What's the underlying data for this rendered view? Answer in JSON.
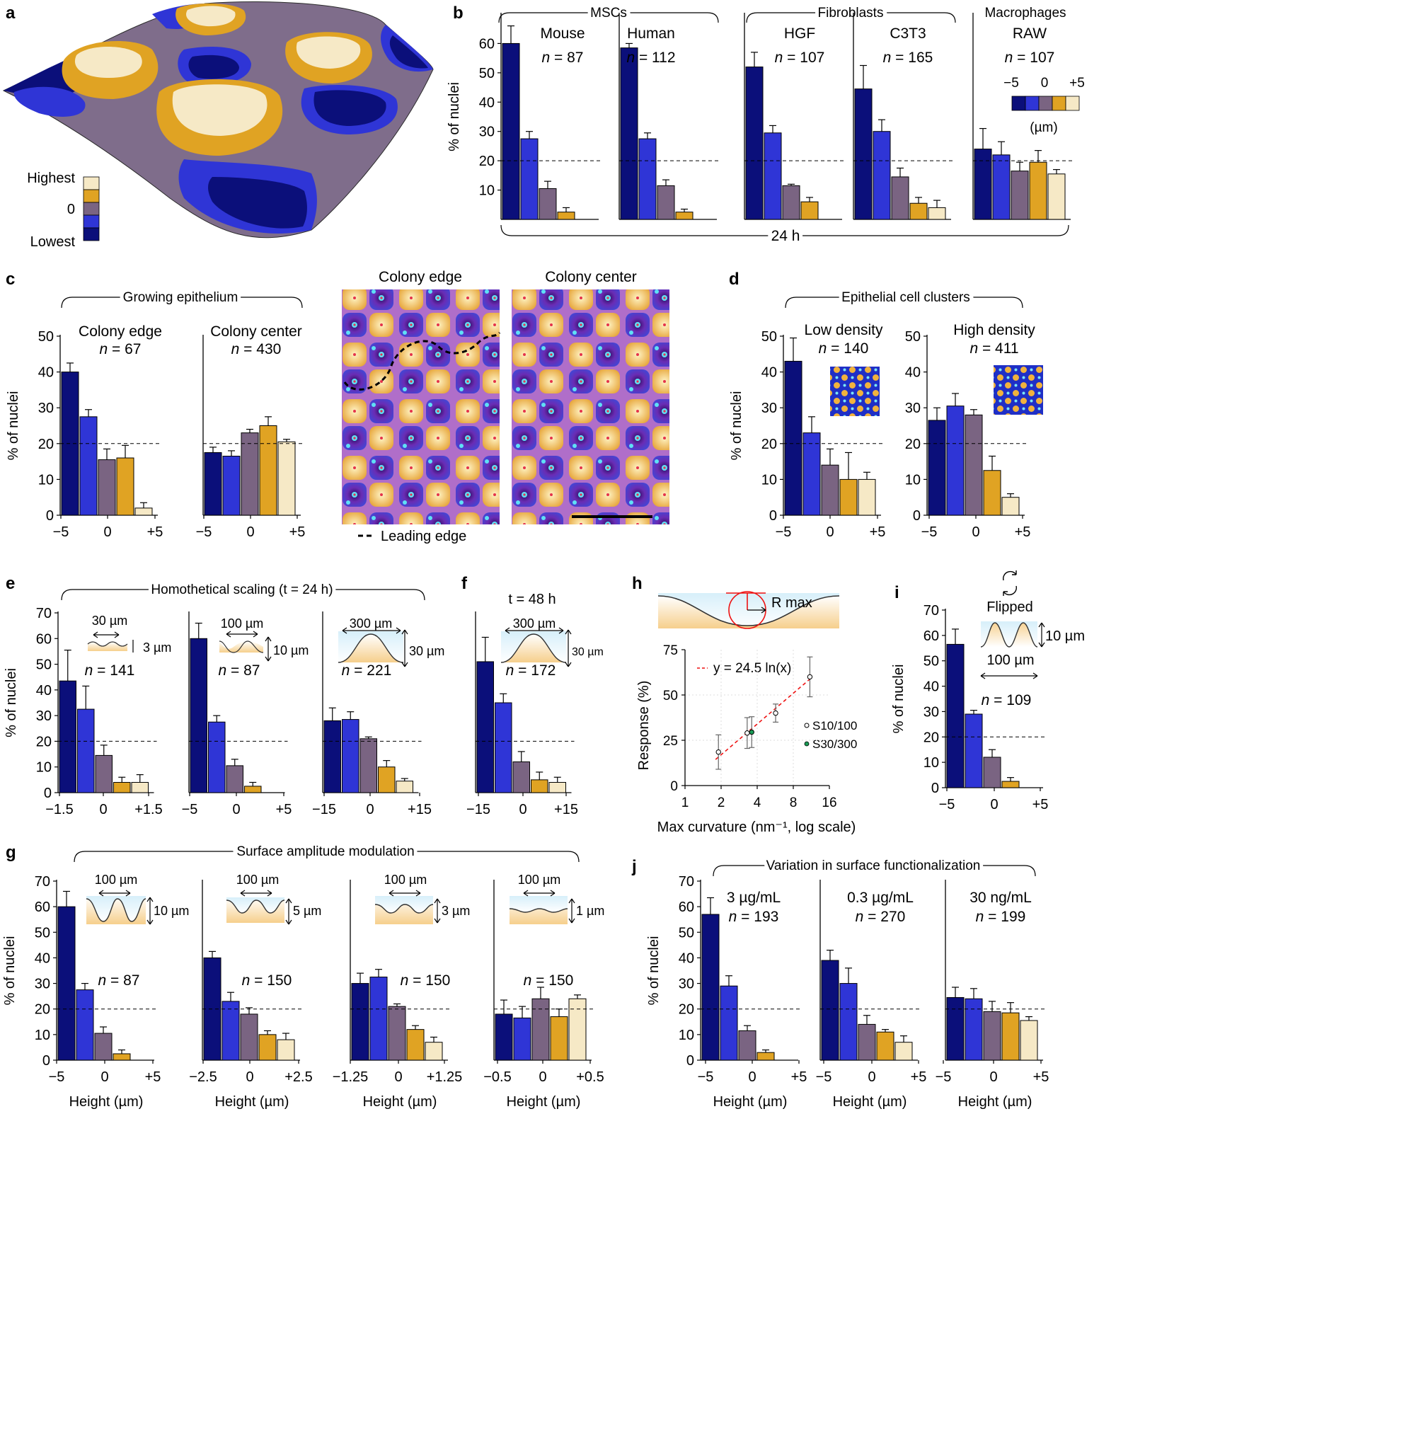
{
  "colors": {
    "c1": "#0b0f7a",
    "c2": "#2f35d6",
    "c3": "#7a6482",
    "c4": "#e0a323",
    "c5": "#f6e9c6"
  },
  "panel_letters": [
    "a",
    "b",
    "c",
    "d",
    "e",
    "f",
    "g",
    "h",
    "i",
    "j"
  ],
  "panel_a": {
    "legend_highest": "Highest",
    "legend_zero": "0",
    "legend_lowest": "Lowest"
  },
  "panel_b": {
    "group_msc": "MSCs",
    "group_fib": "Fibroblasts",
    "group_mac": "Macrophages",
    "time": "24 h",
    "colorbar_labels": [
      "−5",
      "0",
      "+5"
    ],
    "colorbar_unit": "(µm)"
  },
  "panel_c": {
    "group": "Growing epithelium",
    "image_left_title": "Colony edge",
    "image_right_title": "Colony center",
    "leading_edge_label": "Leading edge"
  },
  "panel_d": {
    "group": "Epithelial cell clusters"
  },
  "panel_e": {
    "group": "Homothetical scaling (t = 24 h)",
    "ins1_w": "30 µm",
    "ins1_h": "3 µm",
    "ins2_w": "100 µm",
    "ins2_h": "10 µm",
    "ins3_w": "300 µm",
    "ins3_h": "30 µm"
  },
  "panel_f": {
    "title": "t = 48 h",
    "ins_w": "300 µm",
    "ins_h": "30 µm"
  },
  "panel_g": {
    "group": "Surface amplitude modulation",
    "ins_w": "100 µm",
    "ins_h": [
      "10 µm",
      "5 µm",
      "3 µm",
      "1 µm"
    ]
  },
  "panel_i": {
    "flipped": "Flipped",
    "ins_w": "100 µm",
    "ins_h": "10 µm"
  },
  "panel_j": {
    "group": "Variation in surface functionalization"
  },
  "panel_h": {
    "rmax": "R max",
    "equation": "y = 24.5 ln(x)",
    "legend": [
      "S10/100",
      "S30/300"
    ],
    "xlabel": "Max curvature (nm⁻¹, log scale)",
    "ylabel": "Response (%)",
    "xticks": [
      "1",
      "2",
      "4",
      "8",
      "16"
    ],
    "yticks": [
      "0",
      "25",
      "50",
      "75"
    ]
  },
  "chart_data": [
    {
      "type": "bar",
      "panel": "b",
      "title": "Mouse",
      "n": "87",
      "values": [
        60,
        27.5,
        10.5,
        2.5,
        0
      ],
      "errors": [
        6,
        2.5,
        2.5,
        1.5,
        0
      ],
      "yticks": [
        10,
        20,
        30,
        40,
        50,
        60
      ],
      "ymax": 70,
      "ylabel": "% of nuclei",
      "xticks": []
    },
    {
      "type": "bar",
      "panel": "b",
      "title": "Human",
      "n": "112",
      "values": [
        58.5,
        27.5,
        11.5,
        2.5,
        0
      ],
      "errors": [
        1.5,
        2,
        2,
        1,
        0
      ],
      "yticks": [],
      "ymax": 70,
      "xticks": []
    },
    {
      "type": "bar",
      "panel": "b",
      "title": "HGF",
      "n": "107",
      "values": [
        52,
        29.5,
        11.5,
        6,
        0
      ],
      "errors": [
        5,
        2.5,
        0.5,
        1.5,
        0
      ],
      "yticks": [],
      "ymax": 70,
      "xticks": []
    },
    {
      "type": "bar",
      "panel": "b",
      "title": "C3T3",
      "n": "165",
      "values": [
        44.5,
        30,
        14.5,
        5.5,
        4
      ],
      "errors": [
        8,
        4,
        3,
        2,
        2.5
      ],
      "yticks": [],
      "ymax": 70,
      "xticks": []
    },
    {
      "type": "bar",
      "panel": "b",
      "title": "RAW",
      "n": "107",
      "values": [
        24,
        22,
        16.5,
        19.5,
        15.5
      ],
      "errors": [
        7,
        4.5,
        3,
        4,
        1.5
      ],
      "yticks": [],
      "ymax": 70,
      "xticks": []
    },
    {
      "type": "bar",
      "panel": "c",
      "title": "Colony edge",
      "n": "67",
      "values": [
        40,
        27.5,
        15.5,
        16,
        2
      ],
      "errors": [
        2.5,
        2,
        3,
        3.5,
        1.5
      ],
      "yticks": [
        0,
        10,
        20,
        30,
        40,
        50
      ],
      "ymax": 50,
      "ylabel": "% of nuclei",
      "xticks": [
        "−5",
        "0",
        "+5"
      ]
    },
    {
      "type": "bar",
      "panel": "c",
      "title": "Colony center",
      "n": "430",
      "values": [
        17.5,
        16.5,
        23,
        25,
        20.5
      ],
      "errors": [
        1.5,
        1.5,
        1,
        2.5,
        0.7
      ],
      "yticks": [],
      "ymax": 50,
      "xticks": [
        "−5",
        "0",
        "+5"
      ]
    },
    {
      "type": "bar",
      "panel": "d",
      "title": "Low density",
      "n": "140",
      "values": [
        43,
        23,
        14,
        10,
        10
      ],
      "errors": [
        6.5,
        4.5,
        4.5,
        7.5,
        2
      ],
      "yticks": [
        0,
        10,
        20,
        30,
        40,
        50
      ],
      "ymax": 50,
      "ylabel": "% of nuclei",
      "xticks": [
        "−5",
        "0",
        "+5"
      ]
    },
    {
      "type": "bar",
      "panel": "d",
      "title": "High density",
      "n": "411",
      "values": [
        26.5,
        30.5,
        28,
        12.5,
        5
      ],
      "errors": [
        3.5,
        3.5,
        1.5,
        4,
        1
      ],
      "yticks": [
        0,
        10,
        20,
        30,
        40,
        50
      ],
      "ymax": 50,
      "xticks": [
        "−5",
        "0",
        "+5"
      ]
    },
    {
      "type": "bar",
      "panel": "e",
      "n": "141",
      "values": [
        43.5,
        32.5,
        14.5,
        4,
        4
      ],
      "errors": [
        12,
        9,
        4,
        2,
        3
      ],
      "yticks": [
        0,
        10,
        20,
        30,
        40,
        50,
        60,
        70
      ],
      "ymax": 70,
      "ylabel": "% of nuclei",
      "xticks": [
        "−1.5",
        "0",
        "+1.5"
      ]
    },
    {
      "type": "bar",
      "panel": "e",
      "n": "87",
      "values": [
        60,
        27.5,
        10.5,
        2.5,
        0
      ],
      "errors": [
        6,
        2.5,
        2.5,
        1.5,
        0
      ],
      "yticks": [],
      "ymax": 70,
      "xticks": [
        "−5",
        "0",
        "+5"
      ]
    },
    {
      "type": "bar",
      "panel": "e",
      "n": "221",
      "values": [
        28,
        28.5,
        21,
        10,
        4.5
      ],
      "errors": [
        5,
        3,
        0.7,
        2.5,
        1
      ],
      "yticks": [],
      "ymax": 70,
      "xticks": [
        "−15",
        "0",
        "+15"
      ]
    },
    {
      "type": "bar",
      "panel": "f",
      "n": "172",
      "values": [
        51,
        35,
        12,
        5,
        4
      ],
      "errors": [
        9.5,
        3.5,
        4,
        3,
        2
      ],
      "yticks": [],
      "ymax": 70,
      "xticks": [
        "−15",
        "0",
        "+15"
      ]
    },
    {
      "type": "bar",
      "panel": "i",
      "n": "109",
      "values": [
        56.5,
        29,
        12,
        2.5,
        0
      ],
      "errors": [
        6,
        1.5,
        3,
        1.5,
        0
      ],
      "yticks": [
        0,
        10,
        20,
        30,
        40,
        50,
        60,
        70
      ],
      "ymax": 70,
      "ylabel": "% of nuclei",
      "xticks": [
        "−5",
        "0",
        "+5"
      ]
    },
    {
      "type": "bar",
      "panel": "g",
      "n": "87",
      "values": [
        60,
        27.5,
        10.5,
        2.5,
        0
      ],
      "errors": [
        6,
        2.5,
        2.5,
        1.5,
        0
      ],
      "yticks": [
        0,
        10,
        20,
        30,
        40,
        50,
        60,
        70
      ],
      "ymax": 70,
      "ylabel": "% of nuclei",
      "xlabel": "Height (µm)",
      "xticks": [
        "−5",
        "0",
        "+5"
      ]
    },
    {
      "type": "bar",
      "panel": "g",
      "n": "150",
      "values": [
        40,
        23,
        18,
        10,
        8
      ],
      "errors": [
        2.5,
        3.5,
        2.5,
        1.5,
        2.5
      ],
      "yticks": [],
      "ymax": 70,
      "xlabel": "Height (µm)",
      "xticks": [
        "−2.5",
        "0",
        "+2.5"
      ]
    },
    {
      "type": "bar",
      "panel": "g",
      "n": "150",
      "values": [
        30,
        32.5,
        21,
        12,
        7
      ],
      "errors": [
        4,
        3,
        1,
        1.5,
        2
      ],
      "yticks": [],
      "ymax": 70,
      "xlabel": "Height (µm)",
      "xticks": [
        "−1.25",
        "0",
        "+1.25"
      ]
    },
    {
      "type": "bar",
      "panel": "g",
      "n": "150",
      "values": [
        18,
        16.5,
        24,
        17,
        24
      ],
      "errors": [
        5.5,
        4.5,
        4.5,
        3,
        1.5
      ],
      "yticks": [],
      "ymax": 70,
      "xlabel": "Height (µm)",
      "xticks": [
        "−0.5",
        "0",
        "+0.5"
      ]
    },
    {
      "type": "bar",
      "panel": "j",
      "title": "3 µg/mL",
      "n": "193",
      "values": [
        57,
        29,
        11.5,
        3,
        0
      ],
      "errors": [
        6.5,
        4,
        2,
        1,
        0
      ],
      "yticks": [
        0,
        10,
        20,
        30,
        40,
        50,
        60,
        70
      ],
      "ymax": 70,
      "ylabel": "% of nuclei",
      "xlabel": "Height (µm)",
      "xticks": [
        "−5",
        "0",
        "+5"
      ]
    },
    {
      "type": "bar",
      "panel": "j",
      "title": "0.3 µg/mL",
      "n": "270",
      "values": [
        39,
        30,
        14,
        11,
        7
      ],
      "errors": [
        4,
        6,
        3.5,
        1,
        2.5
      ],
      "yticks": [],
      "ymax": 70,
      "xlabel": "Height (µm)",
      "xticks": [
        "−5",
        "0",
        "+5"
      ]
    },
    {
      "type": "bar",
      "panel": "j",
      "title": "30 ng/mL",
      "n": "199",
      "values": [
        24.5,
        24,
        19,
        18.5,
        15.5
      ],
      "errors": [
        4,
        4,
        4,
        4,
        1.5
      ],
      "yticks": [],
      "ymax": 70,
      "xlabel": "Height (µm)",
      "xticks": [
        "−5",
        "0",
        "+5"
      ]
    },
    {
      "type": "scatter",
      "panel": "h",
      "xscale": "log2",
      "xlim": [
        1,
        16
      ],
      "ylim": [
        0,
        75
      ],
      "points": [
        {
          "x": 1.9,
          "y": 18.5,
          "err": 9.5,
          "series": "S10/100"
        },
        {
          "x": 3.3,
          "y": 29,
          "err": 8.5,
          "series": "S10/100"
        },
        {
          "x": 3.6,
          "y": 29.5,
          "err": 8.5,
          "series": "S30/300"
        },
        {
          "x": 5.7,
          "y": 40,
          "err": 5,
          "series": "S10/100"
        },
        {
          "x": 11,
          "y": 60,
          "err": 11,
          "series": "S10/100"
        }
      ],
      "fit": {
        "a": 24.5,
        "label": "y = 24.5 ln(x)"
      }
    }
  ]
}
